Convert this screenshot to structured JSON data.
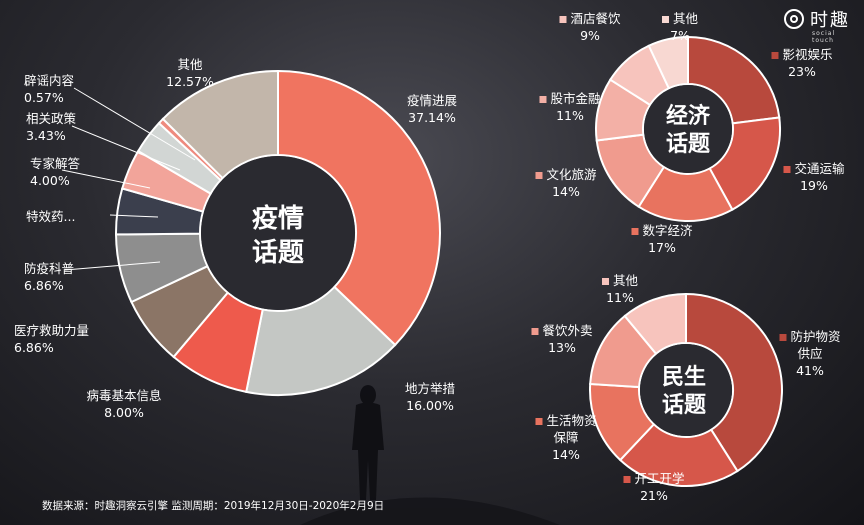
{
  "brand": {
    "logo_icon": "spiral-logo-icon",
    "name": "时趣",
    "sub": "social touch"
  },
  "source": "数据来源：时趣洞察云引擎 监测周期：2019年12月30日-2020年2月9日",
  "chart_data": [
    {
      "type": "pie",
      "title": "疫情话题",
      "title_lines": [
        "疫情",
        "话题"
      ],
      "slices": [
        {
          "name": "疫情进展",
          "value": 37.14,
          "label": "37.14%",
          "color": "#f07460"
        },
        {
          "name": "地方举措",
          "value": 16.0,
          "label": "16.00%",
          "color": "#c4c7c4"
        },
        {
          "name": "病毒基本信息",
          "value": 8.0,
          "label": "8.00%",
          "color": "#ee5a4c"
        },
        {
          "name": "医疗救助力量",
          "value": 6.86,
          "label": "6.86%",
          "color": "#8b7566"
        },
        {
          "name": "防疫科普",
          "value": 6.86,
          "label": "6.86%",
          "color": "#8e8e8e"
        },
        {
          "name": "特效药...",
          "value": 4.57,
          "label": "",
          "color": "#3b3f4d"
        },
        {
          "name": "专家解答",
          "value": 4.0,
          "label": "4.00%",
          "color": "#f2a49a"
        },
        {
          "name": "相关政策",
          "value": 3.43,
          "label": "3.43%",
          "color": "#d2d6d4"
        },
        {
          "name": "辟谣内容",
          "value": 0.57,
          "label": "0.57%",
          "color": "#ee8a7e"
        },
        {
          "name": "其他",
          "value": 12.57,
          "label": "12.57%",
          "color": "#c2b6aa"
        }
      ]
    },
    {
      "type": "pie",
      "title": "经济话题",
      "title_lines": [
        "经济",
        "话题"
      ],
      "slices": [
        {
          "name": "影视娱乐",
          "value": 23,
          "label": "23%",
          "color": "#b8493d"
        },
        {
          "name": "交通运输",
          "value": 19,
          "label": "19%",
          "color": "#d6574a"
        },
        {
          "name": "数字经济",
          "value": 17,
          "label": "17%",
          "color": "#e8735f"
        },
        {
          "name": "文化旅游",
          "value": 14,
          "label": "14%",
          "color": "#f09b8e"
        },
        {
          "name": "股市金融",
          "value": 11,
          "label": "11%",
          "color": "#f3b0a6"
        },
        {
          "name": "酒店餐饮",
          "value": 9,
          "label": "9%",
          "color": "#f7c4bd"
        },
        {
          "name": "其他",
          "value": 7,
          "label": "7%",
          "color": "#f8d8d2"
        }
      ]
    },
    {
      "type": "pie",
      "title": "民生话题",
      "title_lines": [
        "民生",
        "话题"
      ],
      "slices": [
        {
          "name": "防护物资供应",
          "value": 41,
          "label": "41%",
          "color": "#b8493d"
        },
        {
          "name": "开工开学",
          "value": 21,
          "label": "21%",
          "color": "#d6574a"
        },
        {
          "name": "生活物资保障",
          "value": 14,
          "label": "14%",
          "color": "#e8735f"
        },
        {
          "name": "餐饮外卖",
          "value": 13,
          "label": "13%",
          "color": "#f09b8e"
        },
        {
          "name": "其他",
          "value": 11,
          "label": "11%",
          "color": "#f7c4bd"
        }
      ]
    }
  ]
}
